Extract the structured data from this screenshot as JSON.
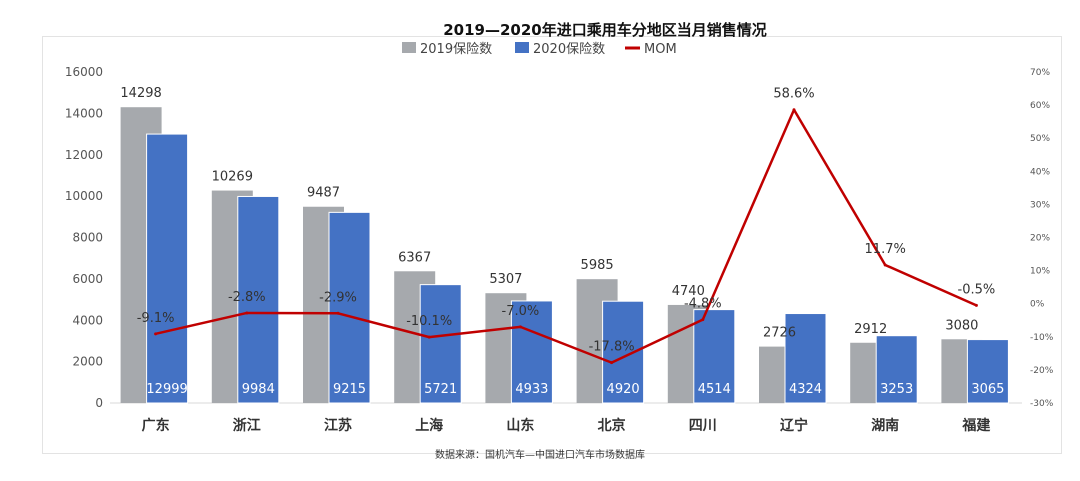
{
  "chart_data": {
    "type": "bar",
    "title": "2019—2020年进口乘用车分地区当月销售情况",
    "categories": [
      "广东",
      "浙江",
      "江苏",
      "上海",
      "山东",
      "北京",
      "四川",
      "辽宁",
      "湖南",
      "福建"
    ],
    "series": [
      {
        "name": "2019保险数",
        "type": "bar",
        "color": "#a6a9ad",
        "values": [
          14298,
          10269,
          9487,
          6367,
          5307,
          5985,
          4740,
          2726,
          2912,
          3080
        ]
      },
      {
        "name": "2020保险数",
        "type": "bar",
        "color": "#4472c4",
        "values": [
          12999,
          9984,
          9215,
          5721,
          4933,
          4920,
          4514,
          4324,
          3253,
          3065
        ]
      },
      {
        "name": "MOM",
        "type": "line",
        "axis": "secondary",
        "color": "#c00000",
        "values": [
          -9.1,
          -2.8,
          -2.9,
          -10.1,
          -7.0,
          -17.8,
          -4.8,
          58.6,
          11.7,
          -0.5
        ],
        "labels": [
          "-9.1%",
          "-2.8%",
          "-2.9%",
          "-10.1%",
          "-7.0%",
          "-17.8%",
          "-4.8%",
          "58.6%",
          "11.7%",
          "-0.5%"
        ]
      }
    ],
    "y_axis": {
      "min": 0,
      "max": 16000,
      "step": 2000,
      "ticks": [
        "0",
        "2000",
        "4000",
        "6000",
        "8000",
        "10000",
        "12000",
        "14000",
        "16000"
      ]
    },
    "y2_axis": {
      "min": -30,
      "max": 70,
      "step": 10,
      "ticks": [
        "-30%",
        "-20%",
        "-10%",
        "0%",
        "10%",
        "20%",
        "30%",
        "40%",
        "50%",
        "60%",
        "70%"
      ]
    },
    "legend_position": "top",
    "grid": false,
    "source": "数据来源：国机汽车—中国进口汽车市场数据库"
  }
}
